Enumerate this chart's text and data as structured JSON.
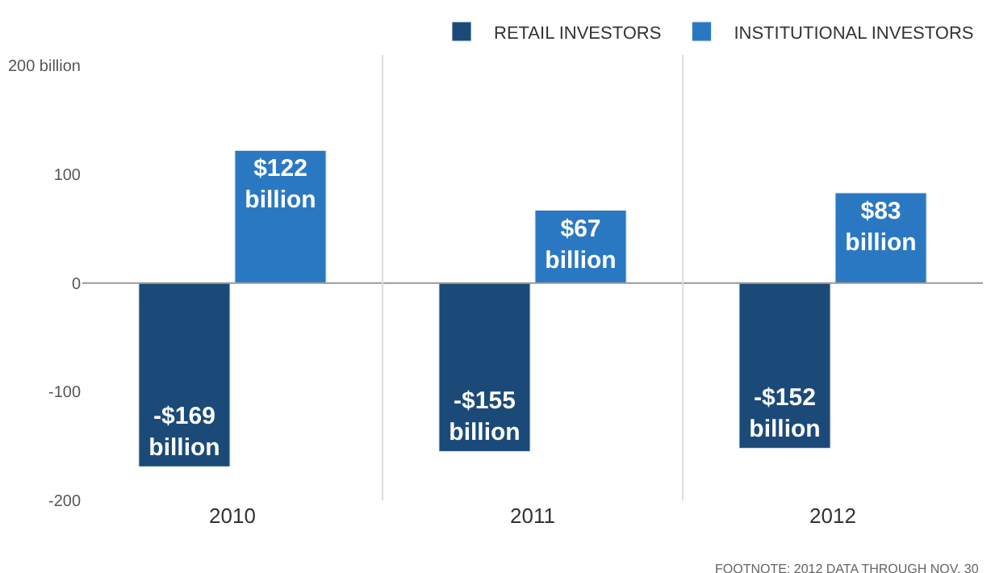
{
  "chart_data": {
    "type": "bar",
    "categories": [
      "2010",
      "2011",
      "2012"
    ],
    "series": [
      {
        "name": "RETAIL INVESTORS",
        "color": "#1b4a78",
        "values": [
          -169,
          -155,
          -152
        ],
        "value_labels": [
          "-$169 billion",
          "-$155 billion",
          "-$152 billion"
        ]
      },
      {
        "name": "INSTITUTIONAL INVESTORS",
        "color": "#2a78c2",
        "values": [
          122,
          67,
          83
        ],
        "value_labels": [
          "$122 billion",
          "$67 billion",
          "$83 billion"
        ]
      }
    ],
    "ylim": [
      -200,
      210
    ],
    "yticks": [
      {
        "value": 200,
        "label": "200 billion"
      },
      100,
      0,
      -100,
      -200
    ],
    "ref_lines": [
      {
        "axis": "y",
        "value": 0,
        "color": "#999999"
      }
    ],
    "grid": "x",
    "legend": "top right",
    "annotations": [
      "FOOTNOTE: 2012 DATA THROUGH NOV. 30"
    ]
  }
}
